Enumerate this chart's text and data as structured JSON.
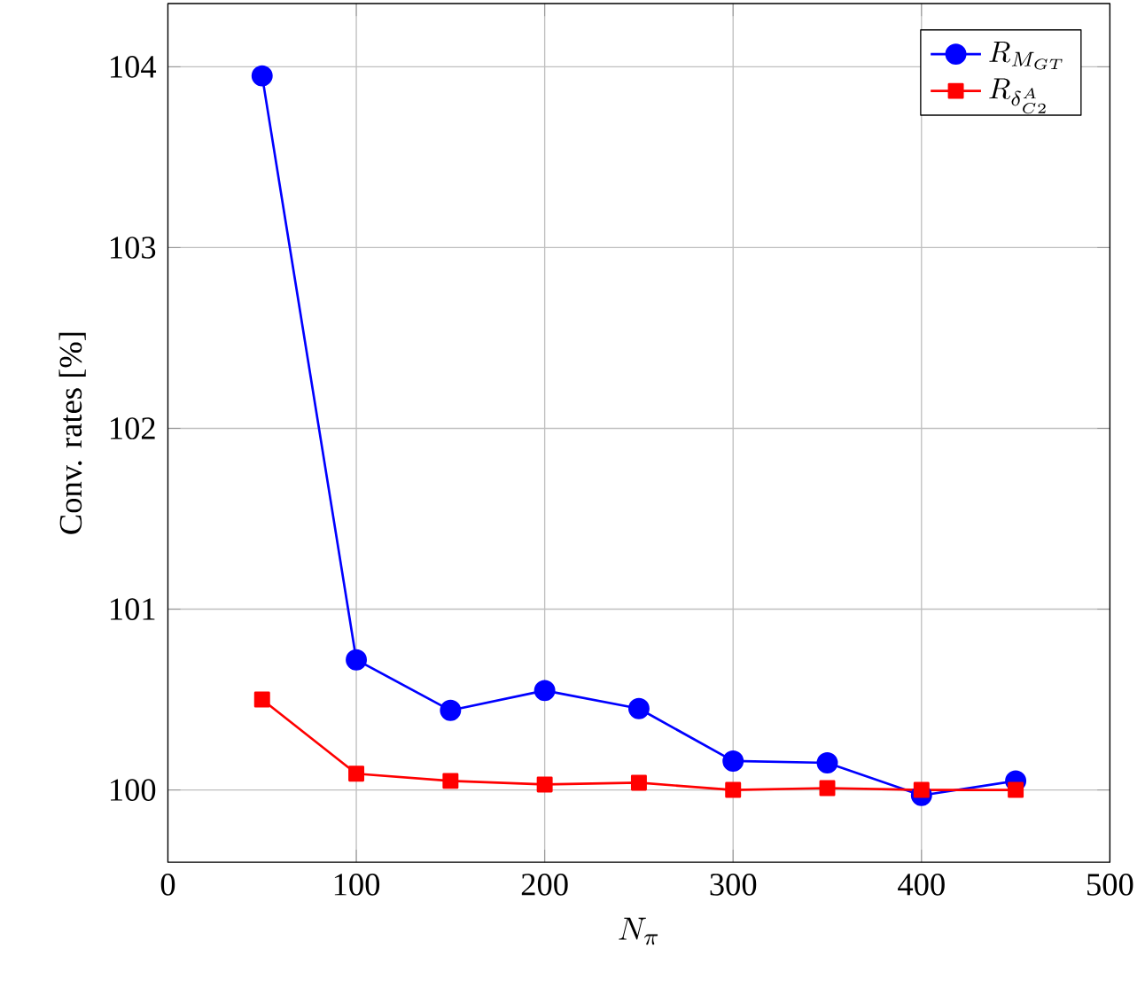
{
  "chart_data": {
    "type": "line",
    "xlabel": "N_\\pi",
    "ylabel": "Conv. rates [%]",
    "x": [
      50,
      100,
      150,
      200,
      250,
      300,
      350,
      400,
      450
    ],
    "series": [
      {
        "name": "R_{M_{GT}}",
        "color": "#0000ff",
        "marker": "circle",
        "values": [
          103.95,
          100.72,
          100.44,
          100.55,
          100.45,
          100.16,
          100.15,
          99.97,
          100.05
        ]
      },
      {
        "name": "R_{\\delta^A_{C2}}",
        "color": "#ff0000",
        "marker": "square",
        "values": [
          100.5,
          100.09,
          100.05,
          100.03,
          100.04,
          100.0,
          100.01,
          100.0,
          100.0
        ]
      }
    ],
    "xlim": [
      0,
      500
    ],
    "ylim": [
      99.6,
      104.35
    ],
    "xticks": [
      0,
      100,
      200,
      300,
      400,
      500
    ],
    "yticks": [
      100,
      101,
      102,
      103,
      104
    ],
    "grid": true,
    "legend": "top right",
    "line_style": "solid"
  }
}
